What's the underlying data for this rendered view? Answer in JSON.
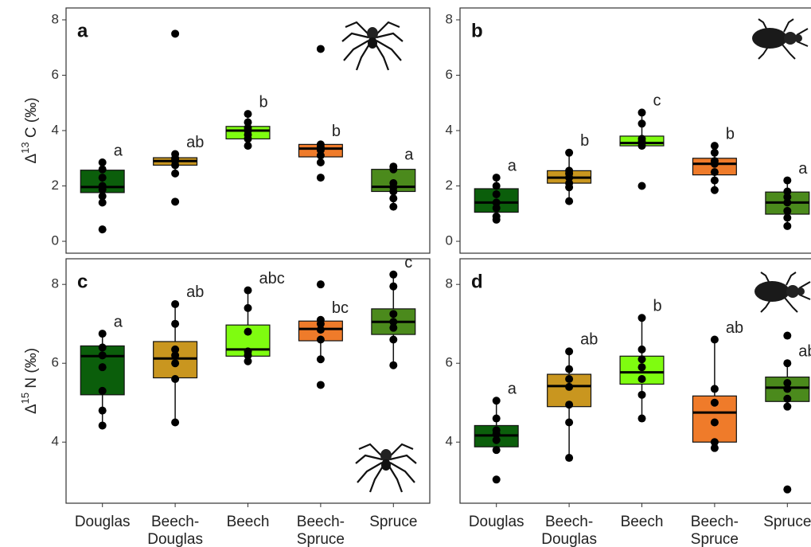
{
  "chart_data": [
    {
      "type": "box",
      "panel_label": "a",
      "ylabel_prefix": "Δ",
      "ylabel_sup": "13",
      "ylabel_suffix": " C (‰)",
      "categories": [
        null,
        null,
        null,
        null,
        null
      ],
      "colors": [
        "#0b5e0b",
        "#c9961f",
        "#7ffc10",
        "#ef7b2a",
        "#4b8a1c"
      ],
      "ylim": [
        -0.43,
        8.43
      ],
      "yticks": [
        0,
        2,
        4,
        6,
        8
      ],
      "boxes": [
        {
          "whisker_low": 1.4,
          "q1": 1.76,
          "median": 1.96,
          "q3": 2.57,
          "whisker_high": 2.85,
          "points": [
            0.43,
            1.4,
            1.63,
            1.87,
            2.0,
            2.3,
            2.6,
            2.85
          ],
          "letter": "a"
        },
        {
          "whisker_low": 2.45,
          "q1": 2.75,
          "median": 2.9,
          "q3": 3.02,
          "whisker_high": 3.15,
          "points": [
            1.43,
            2.45,
            2.75,
            2.9,
            2.95,
            3.0,
            3.15,
            7.5
          ],
          "letter": "ab"
        },
        {
          "whisker_low": 3.45,
          "q1": 3.7,
          "median": 4.0,
          "q3": 4.15,
          "whisker_high": 4.6,
          "points": [
            3.45,
            3.7,
            3.85,
            4.0,
            4.1,
            4.3,
            4.6
          ],
          "letter": "b"
        },
        {
          "whisker_low": 2.85,
          "q1": 3.05,
          "median": 3.35,
          "q3": 3.5,
          "whisker_high": 3.55,
          "points": [
            2.3,
            2.85,
            3.1,
            3.3,
            3.4,
            3.5,
            6.95
          ],
          "letter": "b"
        },
        {
          "whisker_low": 1.25,
          "q1": 1.8,
          "median": 1.97,
          "q3": 2.6,
          "whisker_high": 2.7,
          "points": [
            1.25,
            1.55,
            1.8,
            1.95,
            2.1,
            2.6,
            2.7
          ],
          "letter": "a"
        }
      ]
    },
    {
      "type": "box",
      "panel_label": "b",
      "categories": [
        null,
        null,
        null,
        null,
        null
      ],
      "colors": [
        "#0b5e0b",
        "#c9961f",
        "#7ffc10",
        "#ef7b2a",
        "#4b8a1c"
      ],
      "ylim": [
        -0.43,
        8.43
      ],
      "yticks": [
        0,
        2,
        4,
        6,
        8
      ],
      "boxes": [
        {
          "whisker_low": 0.78,
          "q1": 1.05,
          "median": 1.4,
          "q3": 1.9,
          "whisker_high": 2.3,
          "points": [
            0.78,
            0.9,
            1.2,
            1.4,
            1.7,
            2.0,
            2.3
          ],
          "letter": "a"
        },
        {
          "whisker_low": 1.45,
          "q1": 2.1,
          "median": 2.3,
          "q3": 2.55,
          "whisker_high": 3.2,
          "points": [
            1.45,
            1.95,
            2.1,
            2.3,
            2.45,
            2.55,
            3.2
          ],
          "letter": "b"
        },
        {
          "whisker_low": 3.45,
          "q1": 3.45,
          "median": 3.55,
          "q3": 3.8,
          "whisker_high": 4.65,
          "points": [
            2.0,
            3.45,
            3.55,
            3.6,
            3.7,
            4.25,
            4.65
          ],
          "letter": "c"
        },
        {
          "whisker_low": 1.85,
          "q1": 2.4,
          "median": 2.8,
          "q3": 3.0,
          "whisker_high": 3.45,
          "points": [
            1.85,
            2.2,
            2.5,
            2.8,
            2.9,
            3.2,
            3.45
          ],
          "letter": "b"
        },
        {
          "whisker_low": 0.55,
          "q1": 0.98,
          "median": 1.4,
          "q3": 1.78,
          "whisker_high": 2.2,
          "points": [
            0.55,
            0.85,
            1.1,
            1.4,
            1.6,
            1.8,
            2.2
          ],
          "letter": "a"
        }
      ]
    },
    {
      "type": "box",
      "panel_label": "c",
      "ylabel_prefix": "Δ",
      "ylabel_sup": "15",
      "ylabel_suffix": " N (‰)",
      "categories": [
        "Douglas",
        "Beech-Douglas",
        "Beech",
        "Beech-Spruce",
        "Spruce"
      ],
      "colors": [
        "#0b5e0b",
        "#c9961f",
        "#7ffc10",
        "#ef7b2a",
        "#4b8a1c"
      ],
      "ylim": [
        2.45,
        8.65
      ],
      "yticks": [
        4,
        6,
        8
      ],
      "boxes": [
        {
          "whisker_low": 4.42,
          "q1": 5.2,
          "median": 6.18,
          "q3": 6.44,
          "whisker_high": 6.75,
          "points": [
            4.42,
            4.8,
            5.3,
            5.9,
            6.2,
            6.4,
            6.75
          ],
          "letter": "a"
        },
        {
          "whisker_low": 4.5,
          "q1": 5.63,
          "median": 6.12,
          "q3": 6.55,
          "whisker_high": 7.5,
          "points": [
            4.5,
            5.6,
            6.0,
            6.2,
            6.35,
            7.0,
            7.5
          ],
          "letter": "ab"
        },
        {
          "whisker_low": 6.05,
          "q1": 6.18,
          "median": 6.35,
          "q3": 6.97,
          "whisker_high": 7.85,
          "points": [
            6.05,
            6.2,
            6.3,
            6.8,
            7.4,
            7.85
          ],
          "letter": "abc"
        },
        {
          "whisker_low": 6.1,
          "q1": 6.57,
          "median": 6.87,
          "q3": 7.07,
          "whisker_high": 7.1,
          "points": [
            5.45,
            6.1,
            6.6,
            6.85,
            7.0,
            7.1,
            8.0
          ],
          "letter": "bc"
        },
        {
          "whisker_low": 5.95,
          "q1": 6.73,
          "median": 7.05,
          "q3": 7.38,
          "whisker_high": 8.25,
          "points": [
            5.95,
            6.6,
            6.9,
            7.05,
            7.25,
            7.95,
            8.25
          ],
          "letter": "c"
        }
      ]
    },
    {
      "type": "box",
      "panel_label": "d",
      "categories": [
        "Douglas",
        "Beech-Douglas",
        "Beech",
        "Beech-Spruce",
        "Spruce"
      ],
      "colors": [
        "#0b5e0b",
        "#c9961f",
        "#7ffc10",
        "#ef7b2a",
        "#4b8a1c"
      ],
      "ylim": [
        2.45,
        8.65
      ],
      "yticks": [
        4,
        6,
        8
      ],
      "boxes": [
        {
          "whisker_low": 3.8,
          "q1": 3.88,
          "median": 4.17,
          "q3": 4.42,
          "whisker_high": 5.05,
          "points": [
            3.05,
            3.8,
            4.05,
            4.2,
            4.3,
            4.6,
            5.05
          ],
          "letter": "a"
        },
        {
          "whisker_low": 3.6,
          "q1": 4.9,
          "median": 5.42,
          "q3": 5.72,
          "whisker_high": 6.3,
          "points": [
            3.6,
            4.5,
            4.95,
            5.4,
            5.6,
            5.85,
            6.3
          ],
          "letter": "ab"
        },
        {
          "whisker_low": 4.6,
          "q1": 5.47,
          "median": 5.77,
          "q3": 6.18,
          "whisker_high": 7.15,
          "points": [
            4.6,
            5.2,
            5.6,
            5.9,
            6.1,
            6.35,
            7.15
          ],
          "letter": "b"
        },
        {
          "whisker_low": 3.85,
          "q1": 4.0,
          "median": 4.75,
          "q3": 5.17,
          "whisker_high": 6.6,
          "points": [
            3.85,
            4.0,
            4.5,
            5.0,
            5.35,
            6.6
          ],
          "letter": "ab"
        },
        {
          "whisker_low": 4.9,
          "q1": 5.03,
          "median": 5.38,
          "q3": 5.65,
          "whisker_high": 6.0,
          "points": [
            2.8,
            4.9,
            5.1,
            5.35,
            5.5,
            6.0,
            6.7
          ],
          "letter": "ab"
        }
      ]
    }
  ]
}
